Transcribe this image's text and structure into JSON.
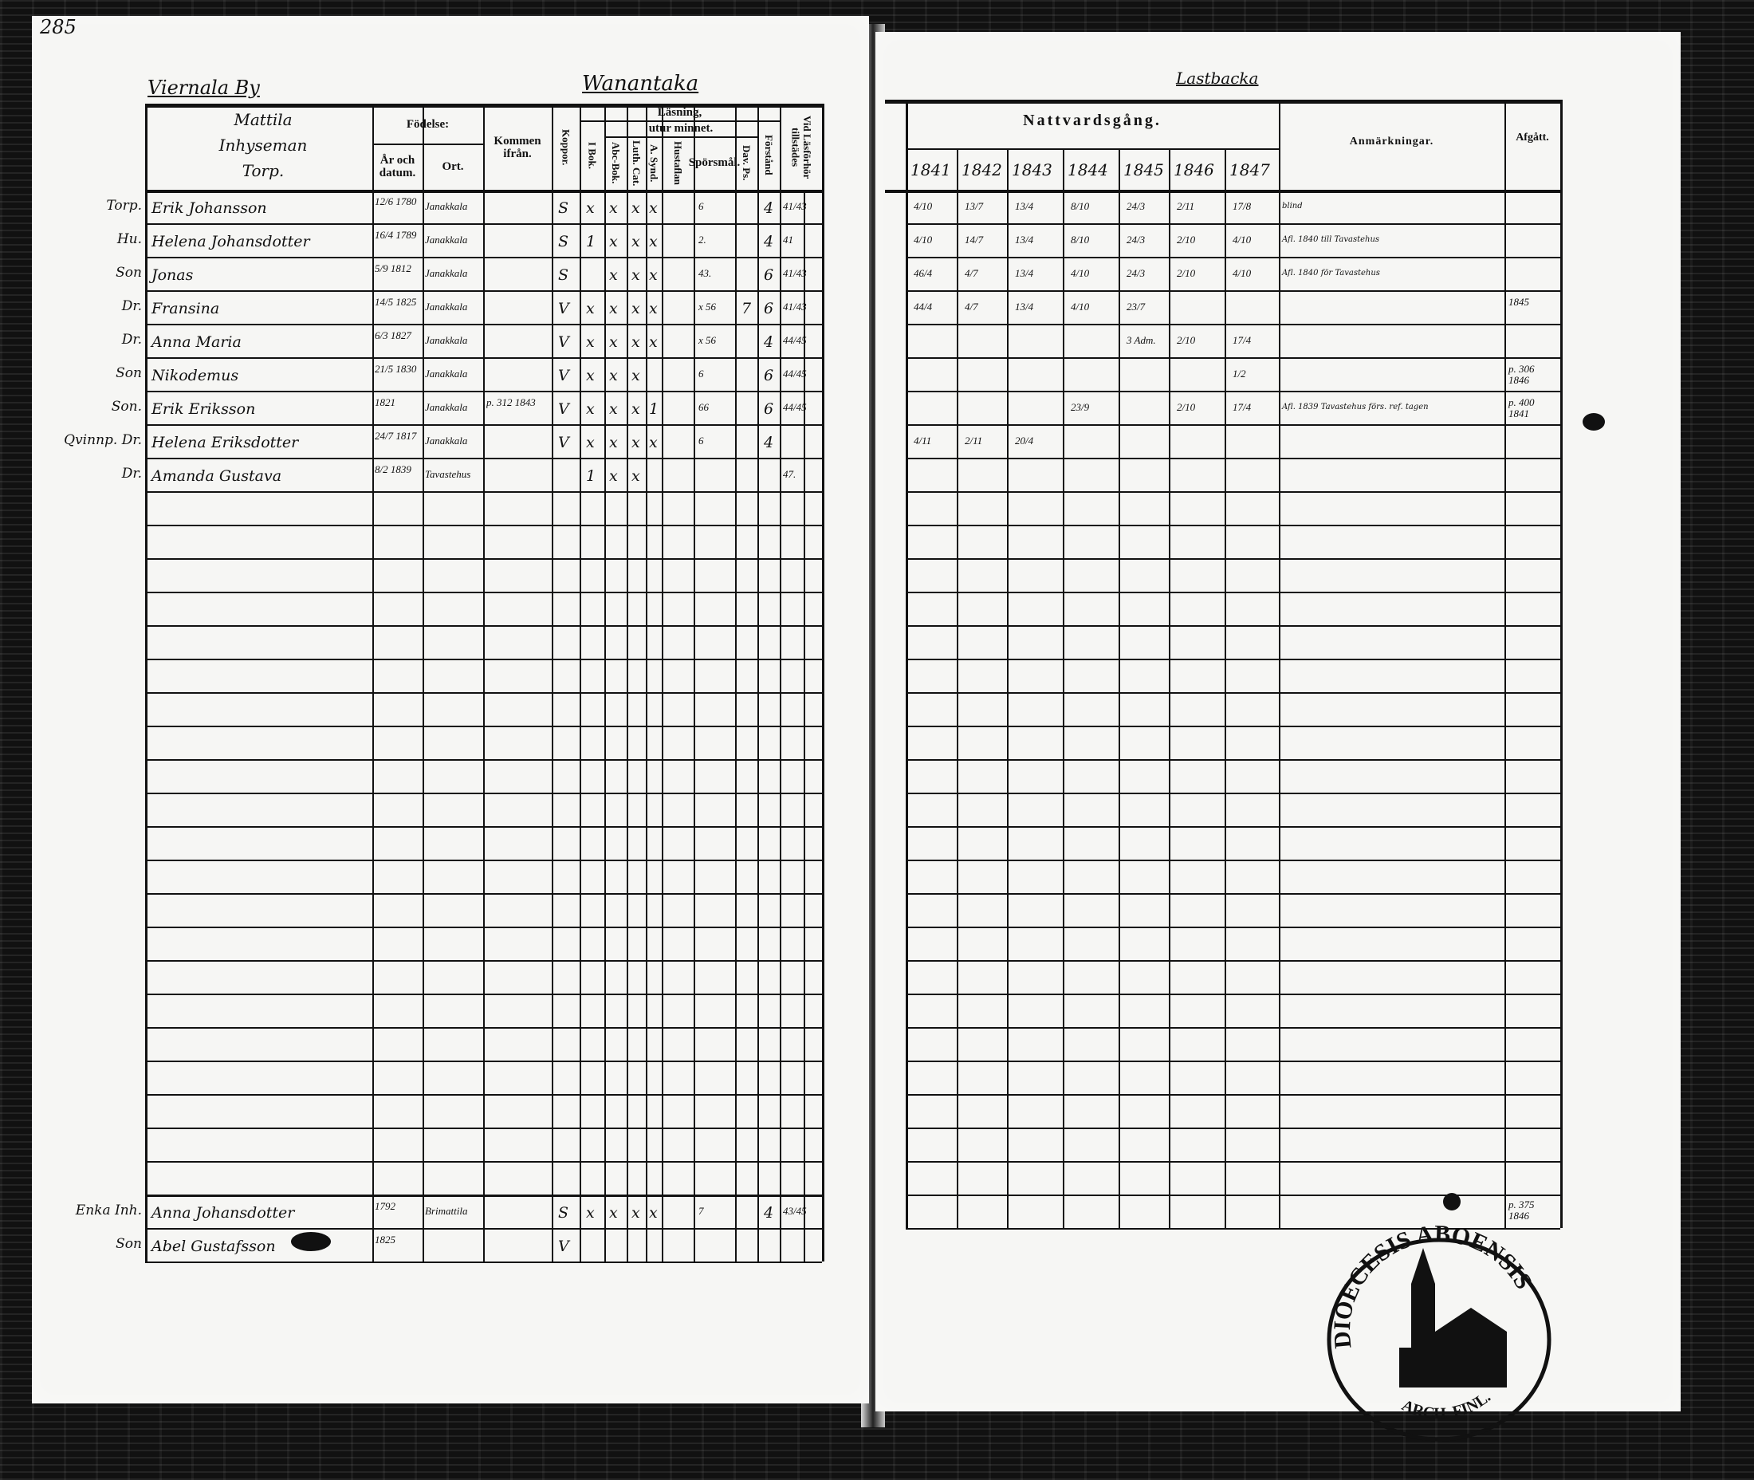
{
  "page_number": "285",
  "left_page": {
    "village": "Viernala By",
    "farm": "Wanantaka",
    "household_header": [
      "Mattila",
      "Inhyseman",
      "Torp."
    ],
    "headers": {
      "fodelse": "Födelse:",
      "ar_och_datum": "År och datum.",
      "ort": "Ort.",
      "kommen_ifran": "Kommen ifrån.",
      "koppor": "Koppor.",
      "lasning": "Läsning,",
      "utur_minnet": "utur minnet.",
      "i_bok": "I Bok.",
      "abc_bok": "Abc-Bok.",
      "luth_cat": "Luth. Cat.",
      "a_synd": "A. Synd.",
      "hustaflan": "Hustaflan",
      "sporsmal": "Spörsmål.",
      "dav_ps": "Dav. Ps.",
      "forstand": "Förstånd",
      "vid_lasforhor": "Vid Läsförhör tillstädes"
    },
    "rows": [
      {
        "role": "Torp.",
        "name": "Erik Johansson",
        "date": "12/6 1780",
        "ort": "Janakkala",
        "kommen": "",
        "koppor": "S",
        "ibok": "x",
        "abc": "x",
        "luth": "x",
        "asynd": "x",
        "sporsmal": "6",
        "dav": "",
        "forstand": "4",
        "vid": "41/43"
      },
      {
        "role": "Hu.",
        "name": "Helena Johansdotter",
        "date": "16/4 1789",
        "ort": "Janakkala",
        "kommen": "",
        "koppor": "S",
        "ibok": "1",
        "abc": "x",
        "luth": "x",
        "asynd": "x",
        "sporsmal": "2.",
        "dav": "",
        "forstand": "4",
        "vid": "41"
      },
      {
        "role": "Son",
        "name": "Jonas",
        "date": "5/9 1812",
        "ort": "Janakkala",
        "kommen": "",
        "koppor": "S",
        "ibok": "",
        "abc": "x",
        "luth": "x",
        "asynd": "x",
        "sporsmal": "43.",
        "dav": "",
        "forstand": "6",
        "vid": "41/43"
      },
      {
        "role": "Dr.",
        "name": "Fransina",
        "date": "14/5 1825",
        "ort": "Janakkala",
        "kommen": "",
        "koppor": "V",
        "ibok": "x",
        "abc": "x",
        "luth": "x",
        "asynd": "x",
        "sporsmal": "x 56",
        "dav": "7",
        "forstand": "6",
        "vid": "41/43"
      },
      {
        "role": "Dr.",
        "name": "Anna Maria",
        "date": "6/3 1827",
        "ort": "Janakkala",
        "kommen": "",
        "koppor": "V",
        "ibok": "x",
        "abc": "x",
        "luth": "x",
        "asynd": "x",
        "sporsmal": "x 56",
        "dav": "",
        "forstand": "4",
        "vid": "44/45"
      },
      {
        "role": "Son",
        "name": "Nikodemus",
        "date": "21/5 1830",
        "ort": "Janakkala",
        "kommen": "",
        "koppor": "V",
        "ibok": "x",
        "abc": "x",
        "luth": "x",
        "asynd": "",
        "sporsmal": "6",
        "dav": "",
        "forstand": "6",
        "vid": "44/45"
      },
      {
        "role": "Son.",
        "name": "Erik Eriksson",
        "date": "1821",
        "ort": "Janakkala",
        "kommen": "p. 312 1843",
        "koppor": "V",
        "ibok": "x",
        "abc": "x",
        "luth": "x",
        "asynd": "1",
        "sporsmal": "66",
        "dav": "",
        "forstand": "6",
        "vid": "44/45"
      },
      {
        "role": "Qvinnp. Dr.",
        "name": "Helena Eriksdotter",
        "date": "24/7 1817",
        "ort": "Janakkala",
        "kommen": "",
        "koppor": "V",
        "ibok": "x",
        "abc": "x",
        "luth": "x",
        "asynd": "x",
        "sporsmal": "6",
        "dav": "",
        "forstand": "4",
        "vid": ""
      },
      {
        "role": "Dr.",
        "name": "Amanda Gustava",
        "date": "8/2 1839",
        "ort": "Tavastehus",
        "kommen": "",
        "koppor": "",
        "ibok": "1",
        "abc": "x",
        "luth": "x",
        "asynd": "",
        "sporsmal": "",
        "dav": "",
        "forstand": "",
        "vid": "47."
      }
    ],
    "bottom_rows": [
      {
        "role": "Enka Inh.",
        "name": "Anna Johansdotter",
        "date": "1792",
        "ort": "Brimattila",
        "kommen": "",
        "koppor": "S",
        "ibok": "x",
        "abc": "x",
        "luth": "x",
        "asynd": "x",
        "sporsmal": "7",
        "dav": "",
        "forstand": "4",
        "vid": "43/45"
      },
      {
        "role": "Son",
        "name": "Abel Gustafsson",
        "date": "1825",
        "ort": "",
        "kommen": "",
        "koppor": "V",
        "ibok": "",
        "abc": "",
        "luth": "",
        "asynd": "",
        "sporsmal": "",
        "dav": "",
        "forstand": "",
        "vid": ""
      }
    ]
  },
  "right_page": {
    "farm": "Lastbacka",
    "headers": {
      "nattvardsgang": "Nattvardsgång.",
      "anmarkningar": "Anmärkningar.",
      "afgatt": "Afgått."
    },
    "years": [
      "1841",
      "1842",
      "1843",
      "1844",
      "1845",
      "1846",
      "1847"
    ],
    "communion": [
      [
        "4/10",
        "13/7",
        "13/4",
        "8/10",
        "24/3",
        "2/11",
        "17/8"
      ],
      [
        "4/10",
        "14/7",
        "13/4",
        "8/10",
        "24/3",
        "2/10",
        "4/10"
      ],
      [
        "46/4",
        "4/7",
        "13/4",
        "4/10",
        "24/3",
        "2/10",
        "4/10"
      ],
      [
        "44/4",
        "4/7",
        "13/4",
        "4/10",
        "23/7",
        "",
        ""
      ],
      [
        "",
        "",
        "",
        "",
        "3 Adm.",
        "2/10",
        "17/4"
      ],
      [
        "",
        "",
        "",
        "",
        "",
        "",
        "1/2"
      ],
      [
        "",
        "",
        "",
        "23/9",
        "",
        "2/10",
        "17/4"
      ],
      [
        "4/11",
        "2/11",
        "20/4",
        "",
        "",
        "",
        ""
      ],
      [
        "",
        "",
        "",
        "",
        "",
        "",
        ""
      ]
    ],
    "remarks": [
      "blind",
      "Afl. 1840 till Tavastehus",
      "Afl. 1840 för Tavastehus",
      "",
      "",
      "",
      "Afl. 1839 Tavastehus förs. ref. tagen",
      "",
      ""
    ],
    "afgatt": [
      "",
      "",
      "",
      "1845",
      "",
      "p. 306 1846",
      "p. 400 1841",
      "",
      ""
    ],
    "bottom_afgatt": "p. 375 1846"
  },
  "stamp": {
    "text": "DIOECESIS ABOENSIS",
    "subtext": "ARCH. FINL."
  }
}
